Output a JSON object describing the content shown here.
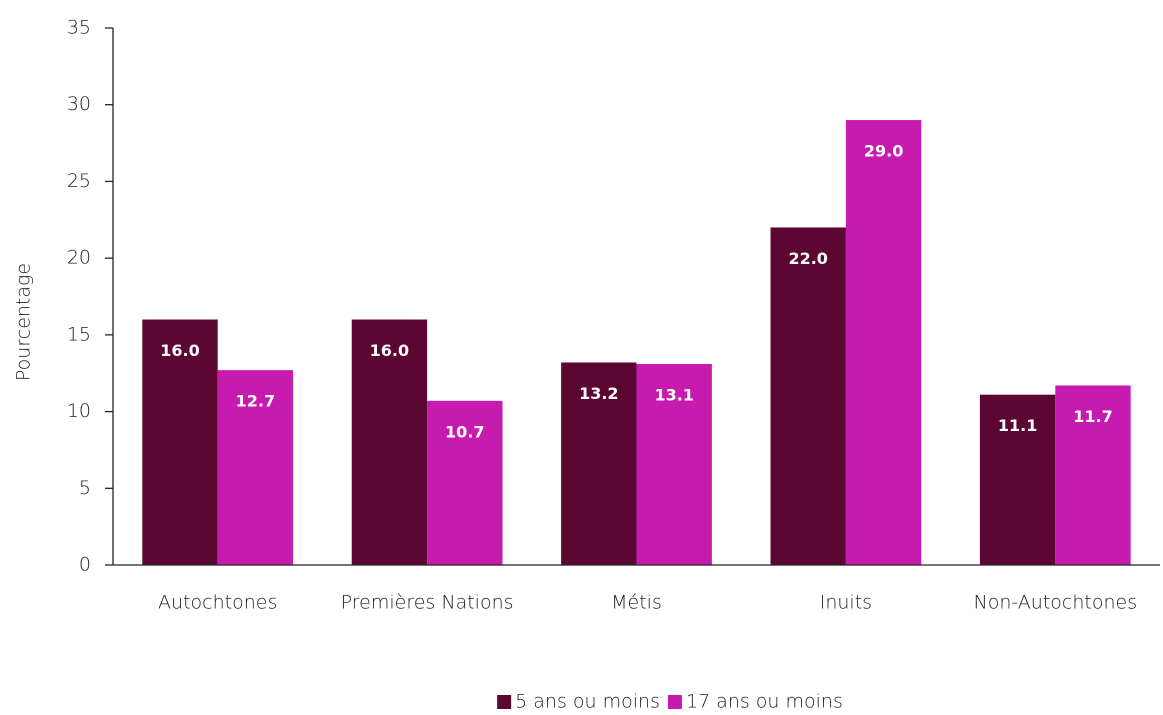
{
  "chart_data": {
    "type": "bar",
    "y_label": "Pourcentage",
    "categories": [
      "Autochtones",
      "Premières Nations",
      "Métis",
      "Inuits",
      "Non-Autochtones"
    ],
    "series": [
      {
        "name": "5 ans ou moins",
        "color": "#5c0632",
        "values": [
          16.0,
          16.0,
          13.2,
          22.0,
          11.1
        ],
        "value_labels": [
          "16.0",
          "16.0",
          "13.2",
          "22.0",
          "11.1"
        ]
      },
      {
        "name": "17 ans ou moins",
        "color": "#c71bb0",
        "values": [
          12.7,
          10.7,
          13.1,
          29.0,
          11.7
        ],
        "value_labels": [
          "12.7",
          "10.7",
          "13.1",
          "29.0",
          "11.7"
        ]
      }
    ],
    "ylim": [
      0,
      35
    ],
    "yticks": [
      0,
      5,
      10,
      15,
      20,
      25,
      30,
      35
    ],
    "grid": false,
    "legend": "bottom"
  }
}
